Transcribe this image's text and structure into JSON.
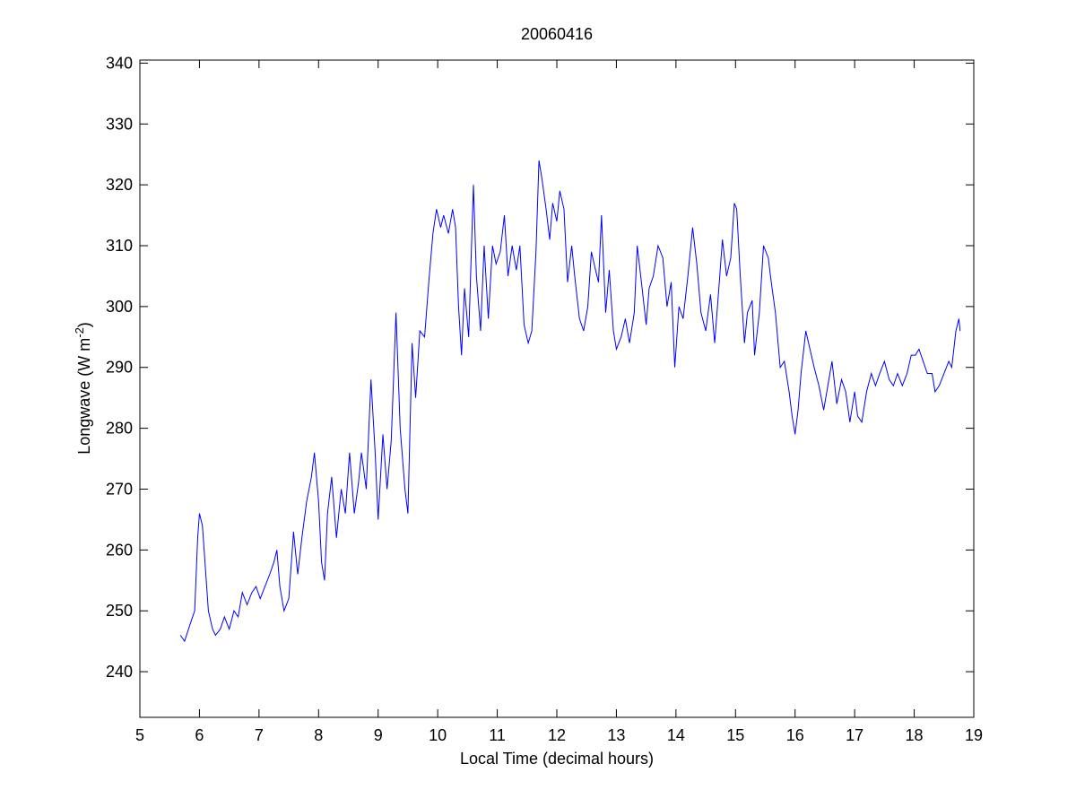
{
  "chart_data": {
    "type": "line",
    "title": "20060416",
    "x_label": "Local Time (decimal hours)",
    "y_label_parts": [
      "Longwave (W m",
      "-2",
      ")"
    ],
    "xlim": [
      5,
      19
    ],
    "xticks": [
      5,
      6,
      7,
      8,
      9,
      10,
      11,
      12,
      13,
      14,
      15,
      16,
      17,
      18,
      19
    ],
    "ylim": [
      232.5,
      340.5
    ],
    "yticks": [
      240,
      250,
      260,
      270,
      280,
      290,
      300,
      310,
      320,
      330,
      340
    ],
    "grid": false,
    "series": [
      {
        "color": "#0000ff",
        "x": [
          5.68,
          5.75,
          5.85,
          5.92,
          5.97,
          6.0,
          6.05,
          6.1,
          6.15,
          6.22,
          6.27,
          6.35,
          6.42,
          6.5,
          6.58,
          6.65,
          6.72,
          6.8,
          6.88,
          6.95,
          7.02,
          7.1,
          7.18,
          7.25,
          7.3,
          7.35,
          7.42,
          7.5,
          7.58,
          7.65,
          7.72,
          7.8,
          7.88,
          7.93,
          8.0,
          8.05,
          8.1,
          8.15,
          8.22,
          8.3,
          8.38,
          8.45,
          8.52,
          8.6,
          8.67,
          8.72,
          8.8,
          8.88,
          8.95,
          9.0,
          9.08,
          9.15,
          9.22,
          9.3,
          9.37,
          9.45,
          9.5,
          9.57,
          9.63,
          9.7,
          9.78,
          9.85,
          9.92,
          9.98,
          10.05,
          10.1,
          10.18,
          10.25,
          10.3,
          10.35,
          10.4,
          10.45,
          10.52,
          10.6,
          10.65,
          10.72,
          10.78,
          10.85,
          10.92,
          10.98,
          11.05,
          11.12,
          11.18,
          11.25,
          11.32,
          11.38,
          11.45,
          11.52,
          11.58,
          11.65,
          11.7,
          11.75,
          11.82,
          11.88,
          11.93,
          12.0,
          12.05,
          12.12,
          12.18,
          12.25,
          12.3,
          12.38,
          12.45,
          12.52,
          12.58,
          12.65,
          12.7,
          12.75,
          12.82,
          12.88,
          12.95,
          13.0,
          13.08,
          13.15,
          13.22,
          13.3,
          13.35,
          13.42,
          13.5,
          13.55,
          13.62,
          13.7,
          13.78,
          13.85,
          13.92,
          13.98,
          14.05,
          14.12,
          14.2,
          14.28,
          14.35,
          14.42,
          14.5,
          14.58,
          14.65,
          14.72,
          14.78,
          14.85,
          14.92,
          14.98,
          15.02,
          15.08,
          15.15,
          15.2,
          15.28,
          15.32,
          15.4,
          15.47,
          15.55,
          15.6,
          15.67,
          15.75,
          15.82,
          15.9,
          15.95,
          16.0,
          16.05,
          16.1,
          16.18,
          16.25,
          16.32,
          16.4,
          16.48,
          16.55,
          16.62,
          16.7,
          16.78,
          16.85,
          16.92,
          17.0,
          17.05,
          17.12,
          17.2,
          17.28,
          17.35,
          17.42,
          17.5,
          17.58,
          17.65,
          17.72,
          17.8,
          17.88,
          17.95,
          18.02,
          18.08,
          18.15,
          18.22,
          18.3,
          18.35,
          18.42,
          18.5,
          18.58,
          18.63,
          18.7,
          18.75,
          18.77
        ],
        "values": [
          246,
          245,
          248,
          250,
          262,
          266,
          264,
          257,
          250,
          247,
          246,
          247,
          249,
          247,
          250,
          249,
          253,
          251,
          253,
          254,
          252,
          254,
          256,
          258,
          260,
          254,
          250,
          252,
          263,
          256,
          262,
          268,
          272,
          276,
          268,
          258,
          255,
          266,
          272,
          262,
          270,
          266,
          276,
          266,
          271,
          276,
          270,
          288,
          276,
          265,
          279,
          270,
          278,
          299,
          280,
          270,
          266,
          294,
          285,
          296,
          295,
          304,
          312,
          316,
          313,
          315,
          312,
          316,
          313,
          300,
          292,
          303,
          295,
          320,
          305,
          296,
          310,
          298,
          310,
          307,
          309,
          315,
          305,
          310,
          306,
          310,
          297,
          294,
          296,
          309,
          324,
          321,
          316,
          311,
          317,
          314,
          319,
          316,
          304,
          310,
          305,
          298,
          296,
          300,
          309,
          306,
          304,
          315,
          299,
          306,
          296,
          293,
          295,
          298,
          294,
          299,
          310,
          304,
          297,
          303,
          305,
          310,
          308,
          300,
          304,
          290,
          300,
          298,
          305,
          313,
          307,
          299,
          296,
          302,
          294,
          303,
          311,
          305,
          308,
          317,
          316,
          305,
          294,
          299,
          301,
          292,
          299,
          310,
          308,
          304,
          299,
          290,
          291,
          286,
          282,
          279,
          283,
          289,
          296,
          293,
          290,
          287,
          283,
          287,
          291,
          284,
          288,
          286,
          281,
          286,
          282,
          281,
          286,
          289,
          287,
          289,
          291,
          288,
          287,
          289,
          287,
          289,
          292,
          292,
          293,
          291,
          289,
          289,
          286,
          287,
          289,
          291,
          290,
          296,
          298,
          296
        ]
      }
    ]
  }
}
